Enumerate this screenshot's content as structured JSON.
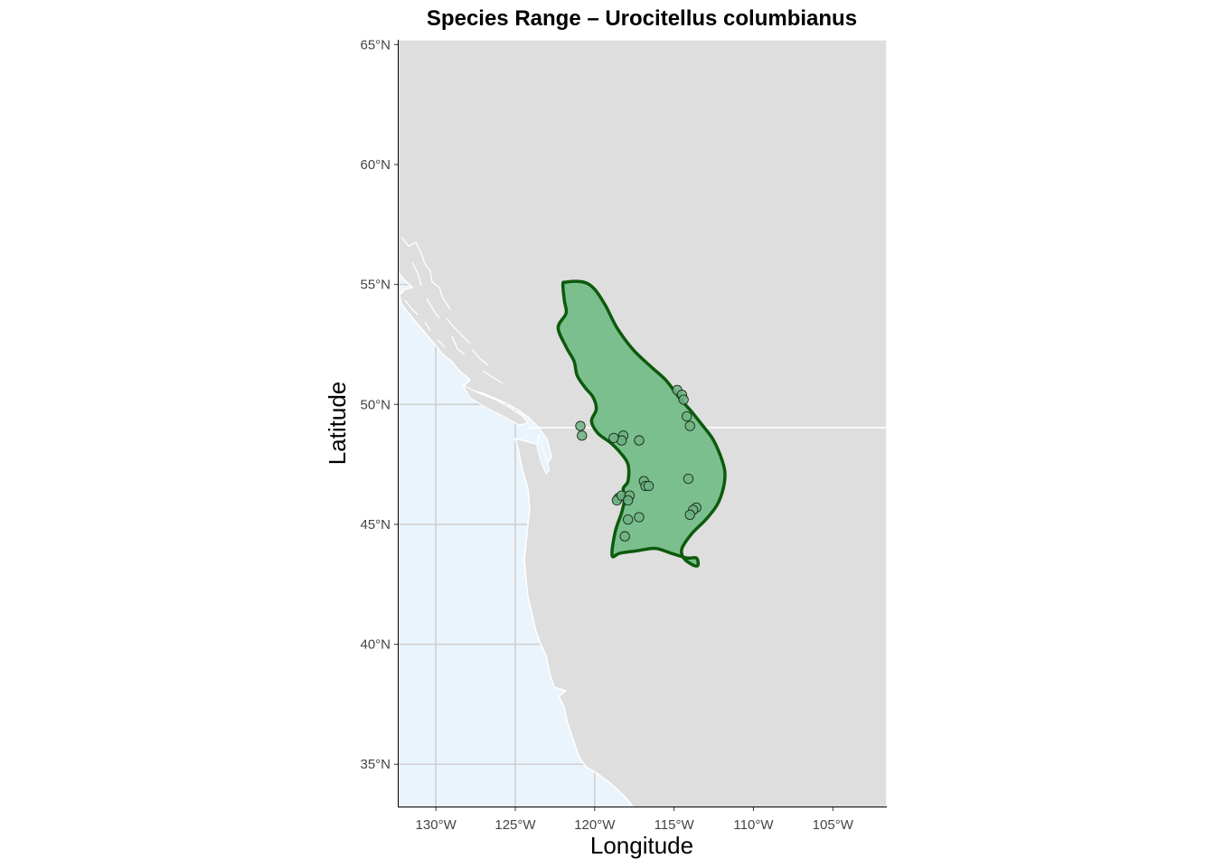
{
  "title": "Species Range – Urocitellus columbianus",
  "xlabel": "Longitude",
  "ylabel": "Latitude",
  "x_ticks": [
    {
      "value": -130,
      "label": "130°W"
    },
    {
      "value": -125,
      "label": "125°W"
    },
    {
      "value": -120,
      "label": "120°W"
    },
    {
      "value": -115,
      "label": "115°W"
    },
    {
      "value": -110,
      "label": "110°W"
    },
    {
      "value": -105,
      "label": "105°W"
    }
  ],
  "y_ticks": [
    {
      "value": 35,
      "label": "35°N"
    },
    {
      "value": 40,
      "label": "40°N"
    },
    {
      "value": 45,
      "label": "45°N"
    },
    {
      "value": 50,
      "label": "50°N"
    },
    {
      "value": 55,
      "label": "55°N"
    },
    {
      "value": 60,
      "label": "60°N"
    },
    {
      "value": 65,
      "label": "65°N"
    }
  ],
  "colors": {
    "land": "#dedede",
    "ocean": "#eaf4fd",
    "grid": "#cfcfcf",
    "range_fill": "#7bbf8e",
    "range_outline": "#0c5a0c",
    "point_fill": "#6db383",
    "point_stroke": "#1a2a1a",
    "border": "#ffffff"
  },
  "chart_data": {
    "type": "map",
    "xlim": [
      -132.4,
      -101.6
    ],
    "ylim": [
      33.2,
      65.2
    ],
    "range_polygon": [
      [
        -121.8,
        55.1
      ],
      [
        -120.7,
        55.1
      ],
      [
        -120.0,
        54.8
      ],
      [
        -119.3,
        54.1
      ],
      [
        -118.6,
        53.2
      ],
      [
        -117.6,
        52.3
      ],
      [
        -116.5,
        51.6
      ],
      [
        -115.5,
        51.0
      ],
      [
        -114.7,
        50.3
      ],
      [
        -113.9,
        49.7
      ],
      [
        -113.3,
        49.2
      ],
      [
        -112.6,
        48.6
      ],
      [
        -112.1,
        47.9
      ],
      [
        -111.8,
        47.2
      ],
      [
        -111.9,
        46.5
      ],
      [
        -112.3,
        45.8
      ],
      [
        -113.0,
        45.2
      ],
      [
        -113.9,
        44.6
      ],
      [
        -114.5,
        44.0
      ],
      [
        -114.4,
        43.6
      ],
      [
        -113.8,
        43.3
      ],
      [
        -113.5,
        43.3
      ],
      [
        -113.6,
        43.6
      ],
      [
        -114.2,
        43.6
      ],
      [
        -115.2,
        43.8
      ],
      [
        -116.2,
        44.0
      ],
      [
        -117.3,
        43.9
      ],
      [
        -118.4,
        43.8
      ],
      [
        -118.9,
        43.7
      ],
      [
        -118.7,
        44.7
      ],
      [
        -118.3,
        45.5
      ],
      [
        -118.1,
        46.1
      ],
      [
        -118.2,
        46.5
      ],
      [
        -117.9,
        46.8
      ],
      [
        -117.9,
        47.5
      ],
      [
        -118.4,
        48.0
      ],
      [
        -119.0,
        48.4
      ],
      [
        -119.8,
        48.8
      ],
      [
        -120.2,
        49.3
      ],
      [
        -119.9,
        49.8
      ],
      [
        -120.1,
        50.3
      ],
      [
        -120.6,
        50.7
      ],
      [
        -121.1,
        51.2
      ],
      [
        -121.3,
        51.8
      ],
      [
        -121.8,
        52.4
      ],
      [
        -122.3,
        53.2
      ],
      [
        -121.8,
        53.8
      ],
      [
        -121.9,
        54.3
      ],
      [
        -122.0,
        55.0
      ]
    ],
    "occurrences": [
      [
        -114.8,
        50.6
      ],
      [
        -114.5,
        50.4
      ],
      [
        -114.4,
        50.2
      ],
      [
        -114.2,
        49.5
      ],
      [
        -114.0,
        49.1
      ],
      [
        -120.9,
        49.1
      ],
      [
        -120.8,
        48.7
      ],
      [
        -118.2,
        48.7
      ],
      [
        -118.3,
        48.5
      ],
      [
        -118.8,
        48.6
      ],
      [
        -117.2,
        48.5
      ],
      [
        -116.9,
        46.8
      ],
      [
        -116.8,
        46.6
      ],
      [
        -116.6,
        46.6
      ],
      [
        -114.1,
        46.9
      ],
      [
        -118.5,
        46.1
      ],
      [
        -118.6,
        46.0
      ],
      [
        -118.3,
        46.2
      ],
      [
        -117.8,
        46.2
      ],
      [
        -117.9,
        46.0
      ],
      [
        -113.6,
        45.7
      ],
      [
        -113.8,
        45.6
      ],
      [
        -114.0,
        45.4
      ],
      [
        -117.2,
        45.3
      ],
      [
        -117.9,
        45.2
      ],
      [
        -118.1,
        44.5
      ]
    ]
  }
}
